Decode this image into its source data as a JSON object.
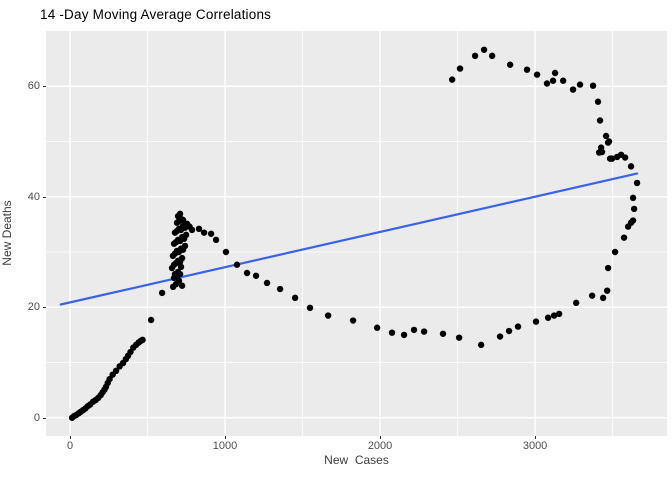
{
  "chart": {
    "title": "14 -Day Moving Average Correlations",
    "xlabel": "New  Cases",
    "ylabel": "New Deaths"
  },
  "chart_data": {
    "type": "scatter",
    "title": "14 -Day Moving Average Correlations",
    "xlabel": "New Cases",
    "ylabel": "New Deaths",
    "xlim": [
      -155,
      3851
    ],
    "ylim": [
      -3.3,
      70
    ],
    "x_major_ticks": [
      0,
      1000,
      2000,
      3000
    ],
    "x_minor_ticks": [
      500,
      1500,
      2500,
      3500
    ],
    "y_major_ticks": [
      0,
      20,
      40,
      60
    ],
    "y_minor_ticks": [
      10,
      30,
      50
    ],
    "x_tick_labels": [
      "0",
      "1000",
      "2000",
      "3000"
    ],
    "y_tick_labels": [
      "0",
      "20",
      "40",
      "60"
    ],
    "grid": "on",
    "legend": "none",
    "panel_bg": "#EBEBEB",
    "grid_color": "#FFFFFF",
    "point_color": "#000000",
    "trend_color": "#3A62E5",
    "trend_line": {
      "x0": -60,
      "y0": 20.5,
      "x1": 3658,
      "y1": 44.2
    },
    "points": [
      [
        13,
        0
      ],
      [
        26,
        0.3
      ],
      [
        40,
        0.5
      ],
      [
        55,
        0.8
      ],
      [
        70,
        1.1
      ],
      [
        85,
        1.4
      ],
      [
        100,
        1.7
      ],
      [
        115,
        2.1
      ],
      [
        130,
        2.4
      ],
      [
        148,
        2.9
      ],
      [
        165,
        3.2
      ],
      [
        182,
        3.6
      ],
      [
        198,
        4.1
      ],
      [
        210,
        4.6
      ],
      [
        222,
        5.1
      ],
      [
        232,
        5.6
      ],
      [
        243,
        6.3
      ],
      [
        255,
        7.0
      ],
      [
        275,
        7.8
      ],
      [
        297,
        8.5
      ],
      [
        320,
        9.3
      ],
      [
        342,
        9.9
      ],
      [
        360,
        10.6
      ],
      [
        374,
        11.2
      ],
      [
        390,
        11.9
      ],
      [
        408,
        12.7
      ],
      [
        426,
        13.2
      ],
      [
        442,
        13.6
      ],
      [
        455,
        13.9
      ],
      [
        468,
        14.1
      ],
      [
        523,
        17.7
      ],
      [
        594,
        22.6
      ],
      [
        658,
        27.1
      ],
      [
        665,
        23.7
      ],
      [
        671,
        25.3
      ],
      [
        677,
        26.0
      ],
      [
        684,
        24.2
      ],
      [
        690,
        25.5
      ],
      [
        697,
        26.4
      ],
      [
        703,
        24.8
      ],
      [
        710,
        26.0
      ],
      [
        716,
        27.3
      ],
      [
        723,
        23.9
      ],
      [
        671,
        27.7
      ],
      [
        684,
        28.0
      ],
      [
        697,
        28.4
      ],
      [
        710,
        28.2
      ],
      [
        723,
        28.9
      ],
      [
        664,
        29.3
      ],
      [
        677,
        29.7
      ],
      [
        690,
        30.2
      ],
      [
        703,
        30.0
      ],
      [
        716,
        30.6
      ],
      [
        729,
        30.4
      ],
      [
        742,
        31.1
      ],
      [
        671,
        31.5
      ],
      [
        684,
        31.8
      ],
      [
        697,
        32.2
      ],
      [
        710,
        32.0
      ],
      [
        723,
        32.7
      ],
      [
        736,
        32.4
      ],
      [
        749,
        33.1
      ],
      [
        677,
        33.5
      ],
      [
        690,
        33.8
      ],
      [
        703,
        34.2
      ],
      [
        716,
        34.0
      ],
      [
        729,
        34.7
      ],
      [
        742,
        34.4
      ],
      [
        690,
        35.3
      ],
      [
        703,
        35.6
      ],
      [
        716,
        36.0
      ],
      [
        729,
        35.8
      ],
      [
        697,
        36.5
      ],
      [
        710,
        36.9
      ],
      [
        755,
        35.1
      ],
      [
        771,
        34.6
      ],
      [
        787,
        34.0
      ],
      [
        832,
        34.2
      ],
      [
        865,
        33.5
      ],
      [
        910,
        33.3
      ],
      [
        942,
        32.2
      ],
      [
        1006,
        30.0
      ],
      [
        1077,
        27.7
      ],
      [
        1142,
        26.2
      ],
      [
        1200,
        25.7
      ],
      [
        1271,
        24.4
      ],
      [
        1355,
        23.3
      ],
      [
        1452,
        21.7
      ],
      [
        1548,
        19.9
      ],
      [
        1665,
        18.5
      ],
      [
        1826,
        17.6
      ],
      [
        1981,
        16.3
      ],
      [
        2077,
        15.4
      ],
      [
        2155,
        15.0
      ],
      [
        2219,
        15.9
      ],
      [
        2284,
        15.6
      ],
      [
        2406,
        15.2
      ],
      [
        2510,
        14.5
      ],
      [
        2652,
        13.2
      ],
      [
        2774,
        14.7
      ],
      [
        2832,
        15.7
      ],
      [
        2890,
        16.5
      ],
      [
        3006,
        17.4
      ],
      [
        3084,
        18.1
      ],
      [
        3123,
        18.5
      ],
      [
        3155,
        18.8
      ],
      [
        3265,
        20.8
      ],
      [
        3368,
        22.1
      ],
      [
        3439,
        21.7
      ],
      [
        3465,
        23.0
      ],
      [
        3471,
        27.1
      ],
      [
        3516,
        30.0
      ],
      [
        3574,
        32.6
      ],
      [
        3600,
        34.6
      ],
      [
        3619,
        35.3
      ],
      [
        3632,
        35.7
      ],
      [
        3639,
        37.8
      ],
      [
        3632,
        39.8
      ],
      [
        3658,
        42.5
      ],
      [
        3619,
        45.5
      ],
      [
        3581,
        47.1
      ],
      [
        3555,
        47.6
      ],
      [
        3529,
        47.2
      ],
      [
        3497,
        46.9
      ],
      [
        3484,
        46.9
      ],
      [
        3432,
        48.1
      ],
      [
        3426,
        48.9
      ],
      [
        3413,
        48.0
      ],
      [
        3458,
        51.0
      ],
      [
        3477,
        50.0
      ],
      [
        3471,
        49.8
      ],
      [
        3419,
        53.8
      ],
      [
        3406,
        57.2
      ],
      [
        3374,
        60.1
      ],
      [
        3290,
        60.3
      ],
      [
        3245,
        59.4
      ],
      [
        3181,
        61.0
      ],
      [
        3129,
        62.4
      ],
      [
        3116,
        61.0
      ],
      [
        3077,
        60.5
      ],
      [
        3013,
        62.1
      ],
      [
        2948,
        63.0
      ],
      [
        2839,
        63.9
      ],
      [
        2723,
        65.5
      ],
      [
        2671,
        66.6
      ],
      [
        2613,
        65.5
      ],
      [
        2516,
        63.2
      ],
      [
        2465,
        61.2
      ]
    ]
  }
}
